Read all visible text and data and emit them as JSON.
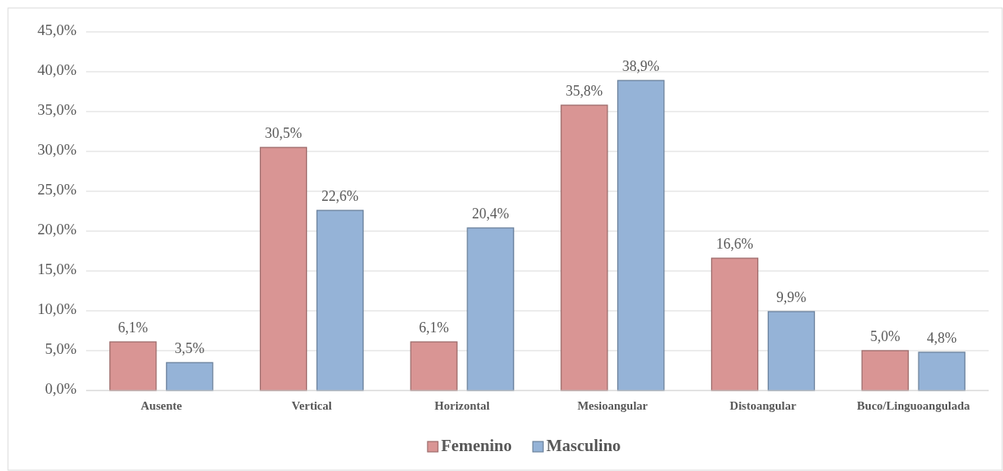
{
  "chart_data": {
    "type": "bar",
    "categories": [
      "Ausente",
      "Vertical",
      "Horizontal",
      "Mesioangular",
      "Distoangular",
      "Buco/Linguoangulada"
    ],
    "series": [
      {
        "name": "Femenino",
        "color": "#d99594",
        "values": [
          6.1,
          30.5,
          6.1,
          35.8,
          16.6,
          5.0
        ],
        "value_labels": [
          "6,1%",
          "30,5%",
          "6,1%",
          "35,8%",
          "16,6%",
          "5,0%"
        ]
      },
      {
        "name": "Masculino",
        "color": "#95b3d7",
        "values": [
          3.5,
          22.6,
          20.4,
          38.9,
          9.9,
          4.8
        ],
        "value_labels": [
          "3,5%",
          "22,6%",
          "20,4%",
          "38,9%",
          "9,9%",
          "4,8%"
        ]
      }
    ],
    "ylim": [
      0,
      45
    ],
    "yticks": [
      {
        "value": 0,
        "label": "0,0%"
      },
      {
        "value": 5,
        "label": "5,0%"
      },
      {
        "value": 10,
        "label": "10,0%"
      },
      {
        "value": 15,
        "label": "15,0%"
      },
      {
        "value": 20,
        "label": "20,0%"
      },
      {
        "value": 25,
        "label": "25,0%"
      },
      {
        "value": 30,
        "label": "30,0%"
      },
      {
        "value": 35,
        "label": "35,0%"
      },
      {
        "value": 40,
        "label": "40,0%"
      },
      {
        "value": 45,
        "label": "45,0%"
      }
    ],
    "grid": "y",
    "legend": "bottom"
  }
}
